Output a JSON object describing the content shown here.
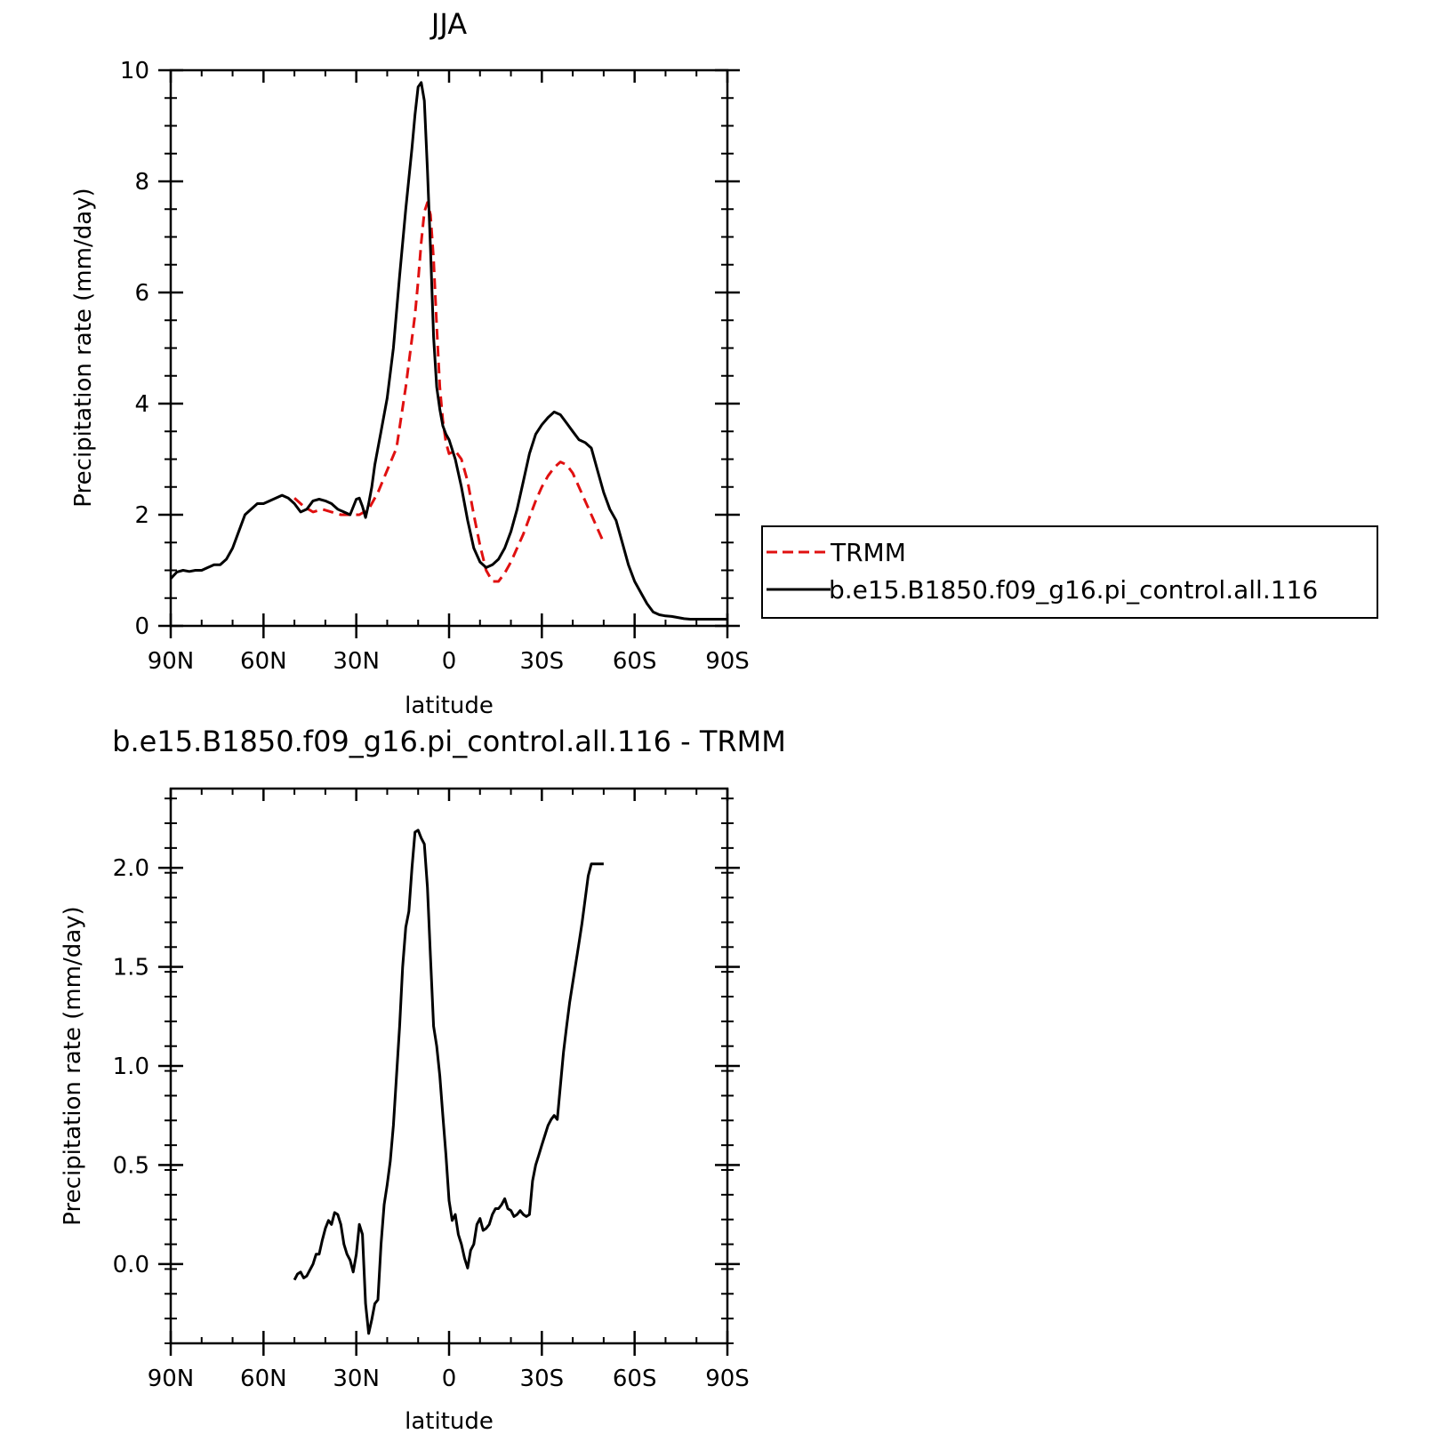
{
  "chart_data": [
    {
      "type": "line",
      "title": "JJA",
      "xlabel": "latitude",
      "ylabel": "Precipitation rate (mm/day)",
      "xlim": [
        90,
        -90
      ],
      "ylim": [
        0,
        10
      ],
      "x_tick_values": [
        90,
        60,
        30,
        0,
        -30,
        -60,
        -90
      ],
      "x_tick_labels": [
        "90N",
        "60N",
        "30N",
        "0",
        "30S",
        "60S",
        "90S"
      ],
      "y_tick_values": [
        0,
        2,
        4,
        6,
        8,
        10
      ],
      "y_tick_labels": [
        "0",
        "2",
        "4",
        "6",
        "8",
        "10"
      ],
      "legend_position": "right",
      "series": [
        {
          "name": "TRMM",
          "color": "#e01010",
          "dash": "dashed",
          "x": [
            50,
            47,
            44,
            41,
            38,
            35,
            32,
            29,
            26,
            23,
            20,
            17,
            14,
            11,
            10,
            9,
            8,
            7,
            6,
            5,
            4,
            3,
            2,
            1,
            0,
            -2,
            -4,
            -6,
            -8,
            -10,
            -12,
            -14,
            -16,
            -18,
            -20,
            -22,
            -24,
            -26,
            -28,
            -30,
            -32,
            -34,
            -36,
            -38,
            -40,
            -42,
            -44,
            -46,
            -48,
            -50
          ],
          "y": [
            2.3,
            2.15,
            2.05,
            2.1,
            2.05,
            2.0,
            2.0,
            2.0,
            2.1,
            2.4,
            2.8,
            3.2,
            4.3,
            5.6,
            6.2,
            6.9,
            7.45,
            7.62,
            7.4,
            6.6,
            5.4,
            4.3,
            3.7,
            3.3,
            3.1,
            3.15,
            3.0,
            2.6,
            2.0,
            1.45,
            1.0,
            0.8,
            0.8,
            0.95,
            1.15,
            1.4,
            1.65,
            1.95,
            2.25,
            2.5,
            2.7,
            2.85,
            2.95,
            2.9,
            2.75,
            2.5,
            2.25,
            2.0,
            1.75,
            1.5
          ]
        },
        {
          "name": "b.e15.B1850.f09_g16.pi_control.all.116",
          "color": "#000000",
          "dash": "solid",
          "x": [
            90,
            88,
            86,
            84,
            82,
            80,
            78,
            76,
            74,
            72,
            70,
            68,
            66,
            64,
            62,
            60,
            58,
            56,
            54,
            52,
            50,
            48,
            46,
            44,
            42,
            40,
            38,
            36,
            34,
            32,
            30,
            29,
            28,
            27,
            26,
            25,
            24,
            22,
            20,
            18,
            16,
            14,
            12,
            11,
            10,
            9,
            8,
            7,
            6,
            5,
            4,
            3,
            2,
            1,
            0,
            -2,
            -4,
            -6,
            -8,
            -10,
            -12,
            -14,
            -16,
            -18,
            -20,
            -22,
            -24,
            -26,
            -28,
            -30,
            -32,
            -34,
            -36,
            -38,
            -40,
            -42,
            -44,
            -46,
            -48,
            -50,
            -52,
            -54,
            -56,
            -58,
            -60,
            -62,
            -64,
            -66,
            -68,
            -70,
            -72,
            -74,
            -76,
            -78,
            -80,
            -82,
            -84,
            -86,
            -88,
            -90
          ],
          "y": [
            0.85,
            0.97,
            1.0,
            0.98,
            1.0,
            1.0,
            1.05,
            1.1,
            1.1,
            1.2,
            1.4,
            1.7,
            2.0,
            2.1,
            2.2,
            2.2,
            2.25,
            2.3,
            2.35,
            2.3,
            2.2,
            2.05,
            2.1,
            2.25,
            2.28,
            2.25,
            2.2,
            2.1,
            2.05,
            2.0,
            2.28,
            2.3,
            2.15,
            1.95,
            2.2,
            2.5,
            2.9,
            3.5,
            4.1,
            5.0,
            6.3,
            7.5,
            8.6,
            9.2,
            9.7,
            9.78,
            9.45,
            8.2,
            6.8,
            5.2,
            4.3,
            3.9,
            3.6,
            3.45,
            3.35,
            3.0,
            2.5,
            1.9,
            1.4,
            1.15,
            1.05,
            1.1,
            1.2,
            1.4,
            1.7,
            2.1,
            2.6,
            3.1,
            3.45,
            3.62,
            3.75,
            3.85,
            3.8,
            3.65,
            3.5,
            3.35,
            3.3,
            3.2,
            2.8,
            2.4,
            2.1,
            1.9,
            1.5,
            1.1,
            0.8,
            0.6,
            0.4,
            0.25,
            0.2,
            0.18,
            0.17,
            0.15,
            0.13,
            0.12,
            0.12,
            0.12,
            0.12,
            0.12,
            0.12,
            0.12
          ]
        }
      ]
    },
    {
      "type": "line",
      "title": "b.e15.B1850.f09_g16.pi_control.all.116 - TRMM",
      "xlabel": "latitude",
      "ylabel": "Precipitation rate (mm/day)",
      "xlim": [
        90,
        -90
      ],
      "ylim": [
        -0.4,
        2.4
      ],
      "x_tick_values": [
        90,
        60,
        30,
        0,
        -30,
        -60,
        -90
      ],
      "x_tick_labels": [
        "90N",
        "60N",
        "30N",
        "0",
        "30S",
        "60S",
        "90S"
      ],
      "y_tick_values": [
        0.0,
        0.5,
        1.0,
        1.5,
        2.0
      ],
      "y_tick_labels": [
        "0.0",
        "0.5",
        "1.0",
        "1.5",
        "2.0"
      ],
      "series": [
        {
          "color": "#000000",
          "dash": "solid",
          "x": [
            50,
            49,
            48,
            47,
            46,
            45,
            44,
            43,
            42,
            41,
            40,
            39,
            38,
            37,
            36,
            35,
            34,
            33,
            32,
            31,
            30,
            29,
            28,
            27,
            26,
            25,
            24,
            23,
            22,
            21,
            20,
            19,
            18,
            17,
            16,
            15,
            14,
            13,
            12,
            11,
            10,
            9,
            8,
            7,
            6,
            5,
            4,
            3,
            2,
            1,
            0,
            -1,
            -2,
            -3,
            -4,
            -5,
            -6,
            -7,
            -8,
            -9,
            -10,
            -11,
            -12,
            -13,
            -14,
            -15,
            -16,
            -17,
            -18,
            -19,
            -20,
            -21,
            -22,
            -23,
            -24,
            -25,
            -26,
            -27,
            -28,
            -29,
            -30,
            -31,
            -32,
            -33,
            -34,
            -35,
            -36,
            -37,
            -38,
            -39,
            -40,
            -41,
            -42,
            -43,
            -44,
            -45,
            -46,
            -47,
            -48,
            -49,
            -50
          ],
          "y": [
            -0.08,
            -0.05,
            -0.04,
            -0.07,
            -0.06,
            -0.03,
            0.0,
            0.05,
            0.05,
            0.12,
            0.18,
            0.22,
            0.2,
            0.26,
            0.25,
            0.2,
            0.1,
            0.05,
            0.02,
            -0.04,
            0.05,
            0.2,
            0.15,
            -0.2,
            -0.35,
            -0.28,
            -0.2,
            -0.18,
            0.1,
            0.3,
            0.4,
            0.52,
            0.7,
            0.95,
            1.2,
            1.5,
            1.7,
            1.78,
            2.0,
            2.18,
            2.19,
            2.15,
            2.12,
            1.9,
            1.55,
            1.2,
            1.1,
            0.95,
            0.75,
            0.55,
            0.32,
            0.22,
            0.25,
            0.15,
            0.1,
            0.03,
            -0.02,
            0.07,
            0.1,
            0.2,
            0.23,
            0.17,
            0.18,
            0.2,
            0.25,
            0.28,
            0.28,
            0.3,
            0.33,
            0.28,
            0.27,
            0.24,
            0.25,
            0.27,
            0.25,
            0.24,
            0.25,
            0.42,
            0.5,
            0.55,
            0.6,
            0.65,
            0.7,
            0.73,
            0.75,
            0.73,
            0.9,
            1.07,
            1.2,
            1.32,
            1.42,
            1.52,
            1.62,
            1.72,
            1.84,
            1.96,
            2.02,
            2.02,
            2.02,
            2.02,
            2.02
          ]
        }
      ]
    }
  ]
}
